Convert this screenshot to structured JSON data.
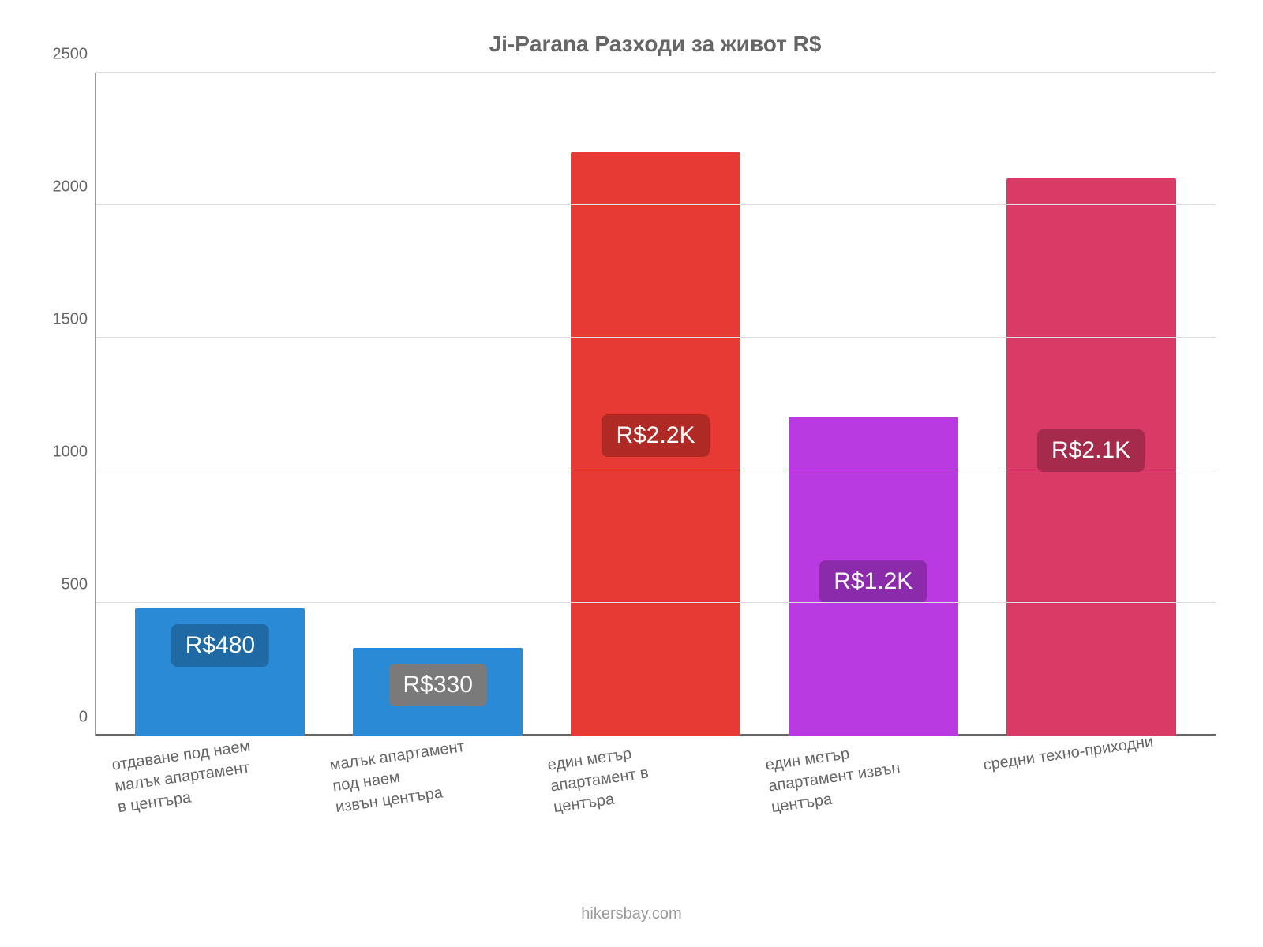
{
  "chart": {
    "type": "bar",
    "title": "Ji-Parana Разходи за живот R$",
    "title_color": "#666666",
    "title_fontsize": 28,
    "background_color": "#ffffff",
    "grid_color": "#dddddd",
    "axis_color": "#666666",
    "label_color": "#666666",
    "label_fontsize": 20,
    "ylim_min": 0,
    "ylim_max": 2500,
    "ytick_step": 500,
    "yticks": [
      "0",
      "500",
      "1000",
      "1500",
      "2000",
      "2500"
    ],
    "bars": [
      {
        "category": "отдаване под наем малък апартамент в центъра",
        "value": 480,
        "display": "R$480",
        "color": "#2a8ad6",
        "label_bg": "#1f6aa5",
        "label_pos": "top"
      },
      {
        "category": "малък апартамент под наем извън центъра",
        "value": 330,
        "display": "R$330",
        "color": "#2a8ad6",
        "label_bg": "#7a7a7a",
        "label_pos": "top"
      },
      {
        "category": "един метър апартамент в центъра",
        "value": 2200,
        "display": "R$2.2K",
        "color": "#e83a34",
        "label_bg": "#b02a25",
        "label_pos": "mid"
      },
      {
        "category": "един метър апартамент извън центъра",
        "value": 1200,
        "display": "R$1.2K",
        "color": "#b93ae0",
        "label_bg": "#8c2aac",
        "label_pos": "mid"
      },
      {
        "category": "средни техно-приходни",
        "value": 2100,
        "display": "R$2.1K",
        "color": "#d93a66",
        "label_bg": "#a52a4c",
        "label_pos": "mid"
      }
    ],
    "attribution": "hikersbay.com"
  }
}
